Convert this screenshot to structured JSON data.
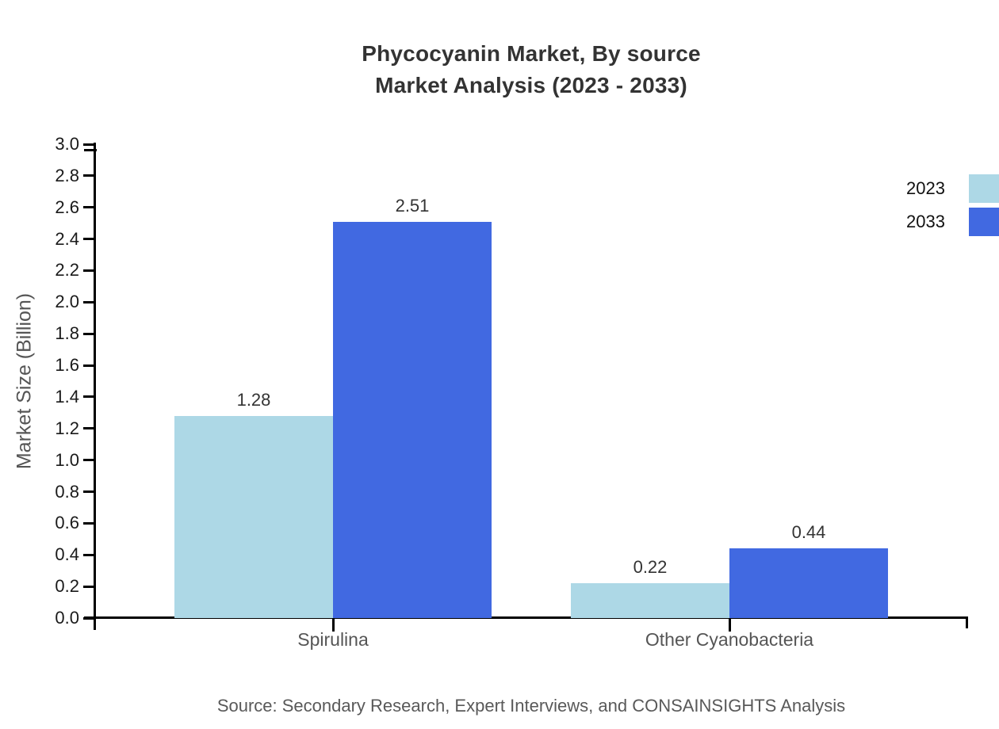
{
  "page": {
    "background": "#ffffff"
  },
  "chart_data": {
    "type": "bar",
    "title_line1": "Phycocyanin Market, By source",
    "title_line2": "Market Analysis (2023 - 2033)",
    "ylabel": "Market Size (Billion)",
    "xlabel": "",
    "categories": [
      "Spirulina",
      "Other Cyanobacteria"
    ],
    "series": [
      {
        "name": "2023",
        "color": "#add8e6",
        "values": [
          1.28,
          0.22
        ],
        "labels": [
          "1.28",
          "0.22"
        ]
      },
      {
        "name": "2033",
        "color": "#4169e1",
        "values": [
          2.51,
          0.44
        ],
        "labels": [
          "2.51",
          "0.44"
        ]
      }
    ],
    "ylim": [
      0.0,
      3.0
    ],
    "ytick_step": 0.2,
    "ytick_decimals": 1,
    "grid": false,
    "legend_position": "right-edge",
    "source_note": "Source: Secondary Research, Expert Interviews, and CONSAINSIGHTS Analysis"
  },
  "colors": {
    "title": "#333333",
    "axis": "#000000",
    "tick_label": "#1a1a1a",
    "category_label": "#555555",
    "value_label": "#333333",
    "muted_text": "#595959",
    "legend_text": "#111111"
  }
}
